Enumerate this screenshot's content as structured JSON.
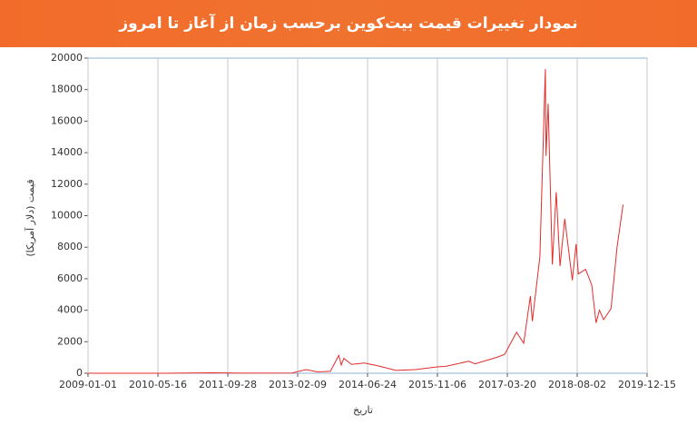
{
  "chart_data": {
    "type": "line",
    "title": "نمودار تغییرات قیمت بیت‌کوین برحسب زمان از آغاز تا امروز",
    "x_label": "تاریخ",
    "y_label": "قیمت (دلار آمریکا)",
    "x": [
      "2009-01-03",
      "2010-07-17",
      "2011-06-08",
      "2012-01-01",
      "2013-01-01",
      "2013-04-09",
      "2013-07-01",
      "2013-10-01",
      "2013-11-30",
      "2013-12-18",
      "2014-01-05",
      "2014-03-01",
      "2014-06-01",
      "2014-09-01",
      "2015-01-14",
      "2015-06-01",
      "2015-11-04",
      "2016-01-01",
      "2016-06-17",
      "2016-08-01",
      "2017-01-01",
      "2017-03-01",
      "2017-05-25",
      "2017-07-15",
      "2017-09-01",
      "2017-09-15",
      "2017-11-08",
      "2017-12-17",
      "2017-12-22",
      "2018-01-06",
      "2018-02-05",
      "2018-03-05",
      "2018-04-01",
      "2018-05-05",
      "2018-06-28",
      "2018-07-25",
      "2018-08-10",
      "2018-10-01",
      "2018-11-14",
      "2018-12-15",
      "2019-01-08",
      "2019-02-07",
      "2019-04-01",
      "2019-05-14",
      "2019-06-26"
    ],
    "series": [
      {
        "name": "BTC",
        "color": "#e32b2b",
        "values": [
          0,
          0.05,
          30,
          5,
          13,
          230,
          90,
          125,
          1130,
          520,
          950,
          560,
          650,
          480,
          180,
          230,
          400,
          430,
          760,
          600,
          1000,
          1200,
          2600,
          1900,
          4900,
          3300,
          7400,
          19300,
          13800,
          17100,
          6900,
          11500,
          6800,
          9800,
          5900,
          8200,
          6300,
          6600,
          5600,
          3200,
          4000,
          3400,
          4100,
          8000,
          10700
        ]
      }
    ],
    "xlim": [
      "2009-01-01",
      "2019-12-15"
    ],
    "xticks": [
      "2009-01-01",
      "2010-05-16",
      "2011-09-28",
      "2013-02-09",
      "2014-06-24",
      "2015-11-06",
      "2017-03-20",
      "2018-08-02",
      "2019-12-15"
    ],
    "ylim": [
      0,
      20000
    ],
    "yticks": [
      0,
      2000,
      4000,
      6000,
      8000,
      10000,
      12000,
      14000,
      16000,
      18000,
      20000
    ],
    "grid": "x"
  }
}
